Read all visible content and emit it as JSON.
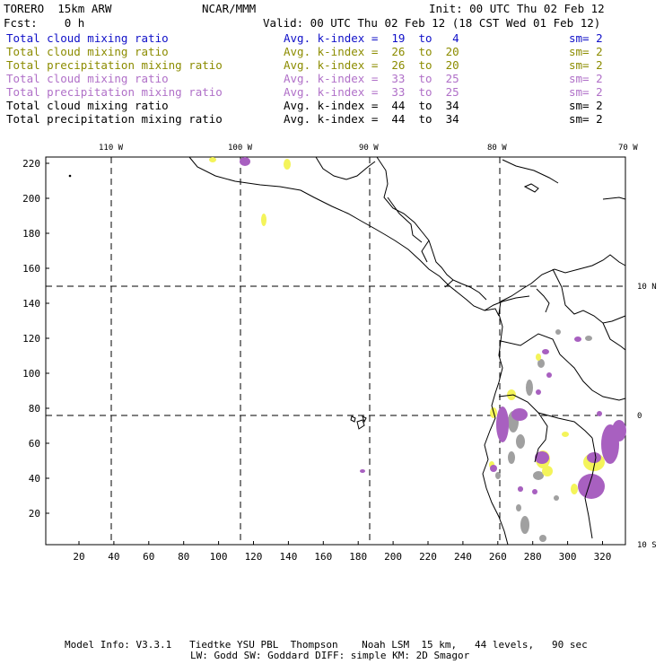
{
  "header": {
    "model": "TORERO  15km ARW",
    "org": "NCAR/MMM",
    "init": "Init: 00 UTC Thu 02 Feb 12",
    "fcst": "Fcst:    0 h",
    "valid": "Valid: 00 UTC Thu 02 Feb 12 (18 CST Wed 01 Feb 12)"
  },
  "legend": [
    {
      "field": "Total cloud mixing ratio",
      "kindex": "Avg. k-index =  19  to   4",
      "sm": "sm= 2",
      "color": "#1010c8"
    },
    {
      "field": "Total cloud mixing ratio",
      "kindex": "Avg. k-index =  26  to  20",
      "sm": "sm= 2",
      "color": "#8c8c00"
    },
    {
      "field": "Total precipitation mixing ratio",
      "kindex": "Avg. k-index =  26  to  20",
      "sm": "sm= 2",
      "color": "#8c8c00"
    },
    {
      "field": "Total cloud mixing ratio",
      "kindex": "Avg. k-index =  33  to  25",
      "sm": "sm= 2",
      "color": "#b070c8"
    },
    {
      "field": "Total precipitation mixing ratio",
      "kindex": "Avg. k-index =  33  to  25",
      "sm": "sm= 2",
      "color": "#b070c8"
    },
    {
      "field": "Total cloud mixing ratio",
      "kindex": "Avg. k-index =  44  to  34",
      "sm": "sm= 2",
      "color": "#000000"
    },
    {
      "field": "Total precipitation mixing ratio",
      "kindex": "Avg. k-index =  44  to  34",
      "sm": "sm= 2",
      "color": "#000000"
    }
  ],
  "map": {
    "lon_labels": [
      "110 W",
      "100 W",
      "90 W",
      "80 W",
      "70 W"
    ],
    "lat_labels": [
      "10 N",
      "0",
      "10 S"
    ],
    "y_ticks": [
      "220",
      "200",
      "180",
      "160",
      "140",
      "120",
      "100",
      "80",
      "60",
      "40",
      "20"
    ],
    "x_ticks": [
      "20",
      "40",
      "60",
      "80",
      "100",
      "120",
      "140",
      "160",
      "180",
      "200",
      "220",
      "240",
      "260",
      "280",
      "300",
      "320"
    ],
    "colors": {
      "frame": "#000000",
      "grid": "#000000",
      "coast": "#000000",
      "gray": "#a0a0a0",
      "yellow": "#f4f45a",
      "purple": "#a860c0"
    }
  },
  "footer": {
    "line1": "Model Info: V3.3.1   Tiedtke YSU PBL  Thompson    Noah LSM  15 km,   44 levels,   90 sec",
    "line2": "LW: Godd SW: Goddard DIFF: simple KM: 2D Smagor"
  }
}
